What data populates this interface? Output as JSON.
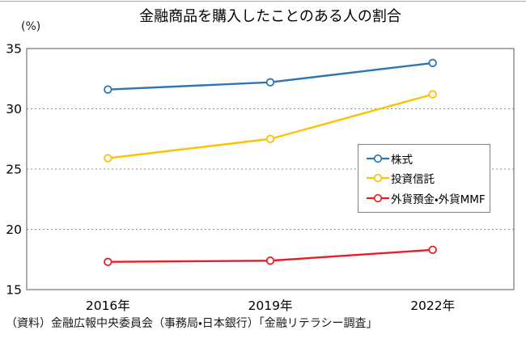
{
  "title": "金融商品を購入したことのある人の割合",
  "source": "（資料）金融広報中央委員会（事務局・日本銀行）「金融リテラシー調査」",
  "colors": {
    "axis_border": "#7f7f7f",
    "gridline": "#8c8c8c",
    "text": "#000000",
    "top_rule": "#a6a6a6"
  },
  "chart_data": {
    "type": "line",
    "title": "金融商品を購入したことのある人の割合",
    "ylabel": "(%)",
    "xlabel": "",
    "categories": [
      "2016年",
      "2019年",
      "2022年"
    ],
    "series": [
      {
        "name": "株式",
        "values": [
          31.6,
          32.2,
          33.8
        ],
        "color": "#2e75b6"
      },
      {
        "name": "投資信託",
        "values": [
          25.9,
          27.5,
          31.2
        ],
        "color": "#ffc000"
      },
      {
        "name": "外貨預金・外貨MMF",
        "values": [
          17.3,
          17.4,
          18.3
        ],
        "color": "#ed1c24"
      }
    ],
    "ylim": [
      15,
      35
    ],
    "yticks": [
      35,
      30,
      25,
      20,
      15
    ],
    "grid": "horizontal-dotted",
    "legend_position": "middle-right-inside",
    "marker": "open-circle"
  }
}
